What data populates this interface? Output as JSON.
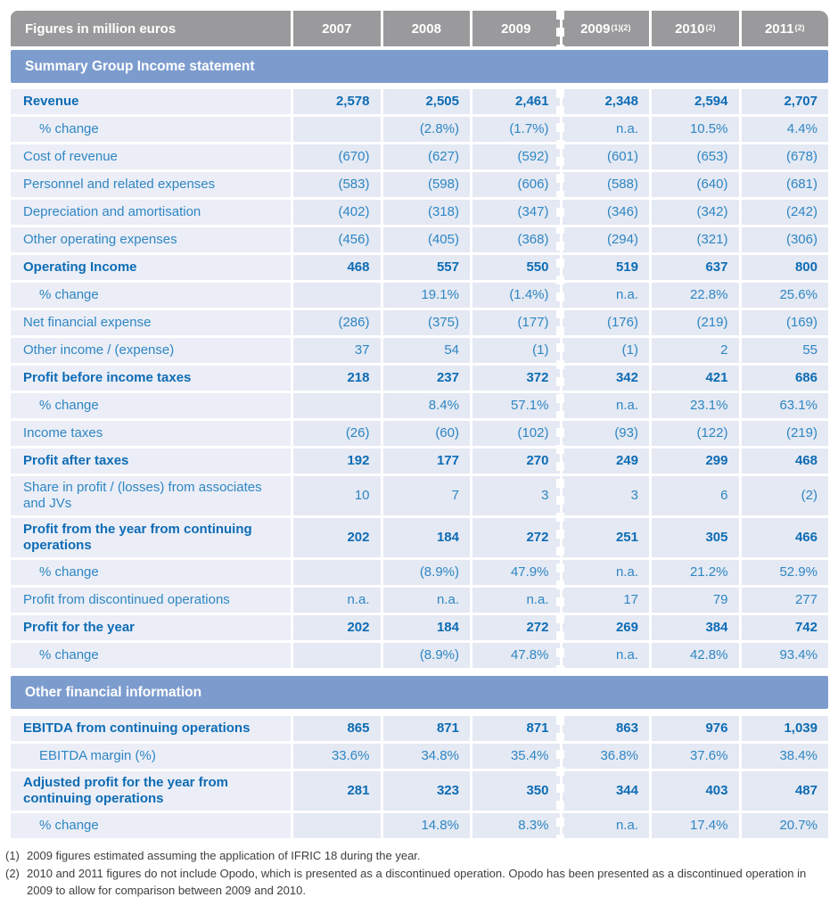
{
  "table": {
    "header": {
      "label": "Figures in million euros",
      "columns": [
        {
          "text": "2007",
          "sup": ""
        },
        {
          "text": "2008",
          "sup": ""
        },
        {
          "text": "2009",
          "sup": ""
        },
        {
          "text": "2009",
          "sup": "(1)(2)"
        },
        {
          "text": "2010",
          "sup": "(2)"
        },
        {
          "text": "2011",
          "sup": "(2)"
        }
      ]
    },
    "sections": [
      {
        "title": "Summary Group Income statement",
        "rows": [
          {
            "label": "Revenue",
            "style": "bold",
            "values": [
              "2,578",
              "2,505",
              "2,461",
              "2,348",
              "2,594",
              "2,707"
            ]
          },
          {
            "label": "% change",
            "style": "indent",
            "values": [
              "",
              "(2.8%)",
              "(1.7%)",
              "n.a.",
              "10.5%",
              "4.4%"
            ]
          },
          {
            "label": "Cost of revenue",
            "style": "plain",
            "values": [
              "(670)",
              "(627)",
              "(592)",
              "(601)",
              "(653)",
              "(678)"
            ]
          },
          {
            "label": "Personnel and related expenses",
            "style": "plain",
            "values": [
              "(583)",
              "(598)",
              "(606)",
              "(588)",
              "(640)",
              "(681)"
            ]
          },
          {
            "label": "Depreciation and amortisation",
            "style": "plain",
            "values": [
              "(402)",
              "(318)",
              "(347)",
              "(346)",
              "(342)",
              "(242)"
            ]
          },
          {
            "label": "Other operating expenses",
            "style": "plain",
            "values": [
              "(456)",
              "(405)",
              "(368)",
              "(294)",
              "(321)",
              "(306)"
            ]
          },
          {
            "label": "Operating Income",
            "style": "bold",
            "values": [
              "468",
              "557",
              "550",
              "519",
              "637",
              "800"
            ]
          },
          {
            "label": "% change",
            "style": "indent",
            "values": [
              "",
              "19.1%",
              "(1.4%)",
              "n.a.",
              "22.8%",
              "25.6%"
            ]
          },
          {
            "label": "Net financial expense",
            "style": "plain",
            "values": [
              "(286)",
              "(375)",
              "(177)",
              "(176)",
              "(219)",
              "(169)"
            ]
          },
          {
            "label": "Other income / (expense)",
            "style": "plain",
            "values": [
              "37",
              "54",
              "(1)",
              "(1)",
              "2",
              "55"
            ]
          },
          {
            "label": "Profit before income taxes",
            "style": "bold",
            "values": [
              "218",
              "237",
              "372",
              "342",
              "421",
              "686"
            ]
          },
          {
            "label": "% change",
            "style": "indent",
            "values": [
              "",
              "8.4%",
              "57.1%",
              "n.a.",
              "23.1%",
              "63.1%"
            ]
          },
          {
            "label": "Income taxes",
            "style": "plain",
            "values": [
              "(26)",
              "(60)",
              "(102)",
              "(93)",
              "(122)",
              "(219)"
            ]
          },
          {
            "label": "Profit after taxes",
            "style": "bold",
            "values": [
              "192",
              "177",
              "270",
              "249",
              "299",
              "468"
            ]
          },
          {
            "label": "Share in profit / (losses) from associates and JVs",
            "style": "plain",
            "values": [
              "10",
              "7",
              "3",
              "3",
              "6",
              "(2)"
            ]
          },
          {
            "label": "Profit from the year from continuing operations",
            "style": "bold",
            "values": [
              "202",
              "184",
              "272",
              "251",
              "305",
              "466"
            ]
          },
          {
            "label": "% change",
            "style": "indent",
            "values": [
              "",
              "(8.9%)",
              "47.9%",
              "n.a.",
              "21.2%",
              "52.9%"
            ]
          },
          {
            "label": "Profit from discontinued operations",
            "style": "plain",
            "values": [
              "n.a.",
              "n.a.",
              "n.a.",
              "17",
              "79",
              "277"
            ]
          },
          {
            "label": "Profit for the year",
            "style": "bold",
            "values": [
              "202",
              "184",
              "272",
              "269",
              "384",
              "742"
            ]
          },
          {
            "label": "% change",
            "style": "indent",
            "values": [
              "",
              "(8.9%)",
              "47.8%",
              "n.a.",
              "42.8%",
              "93.4%"
            ]
          }
        ]
      },
      {
        "title": "Other financial information",
        "rows": [
          {
            "label": "EBITDA from continuing operations",
            "style": "bold",
            "values": [
              "865",
              "871",
              "871",
              "863",
              "976",
              "1,039"
            ]
          },
          {
            "label": "EBITDA margin (%)",
            "style": "indent",
            "values": [
              "33.6%",
              "34.8%",
              "35.4%",
              "36.8%",
              "37.6%",
              "38.4%"
            ]
          },
          {
            "label": "Adjusted profit for the year from continuing operations",
            "style": "bold",
            "values": [
              "281",
              "323",
              "350",
              "344",
              "403",
              "487"
            ]
          },
          {
            "label": "% change",
            "style": "indent",
            "values": [
              "",
              "14.8%",
              "8.3%",
              "n.a.",
              "17.4%",
              "20.7%"
            ]
          }
        ]
      }
    ]
  },
  "footnotes": [
    {
      "marker": "(1)",
      "text": "2009 figures estimated assuming the application of IFRIC 18 during the year."
    },
    {
      "marker": "(2)",
      "text": "2010 and 2011 figures do not include Opodo, which is presented as a discontinued operation. Opodo has been presented as a discontinued operation in 2009 to allow for comparison between 2009 and 2010."
    }
  ],
  "colors": {
    "header_bg": "#9a9a9c",
    "band_bg": "#7d9cce",
    "label_cell_bg": "#ebeef7",
    "value_cell_bg": "#e4e9f3",
    "text_blue": "#2f86c3",
    "text_blue_bold": "#0e6cb4",
    "footnote_text": "#3d3d3d"
  }
}
